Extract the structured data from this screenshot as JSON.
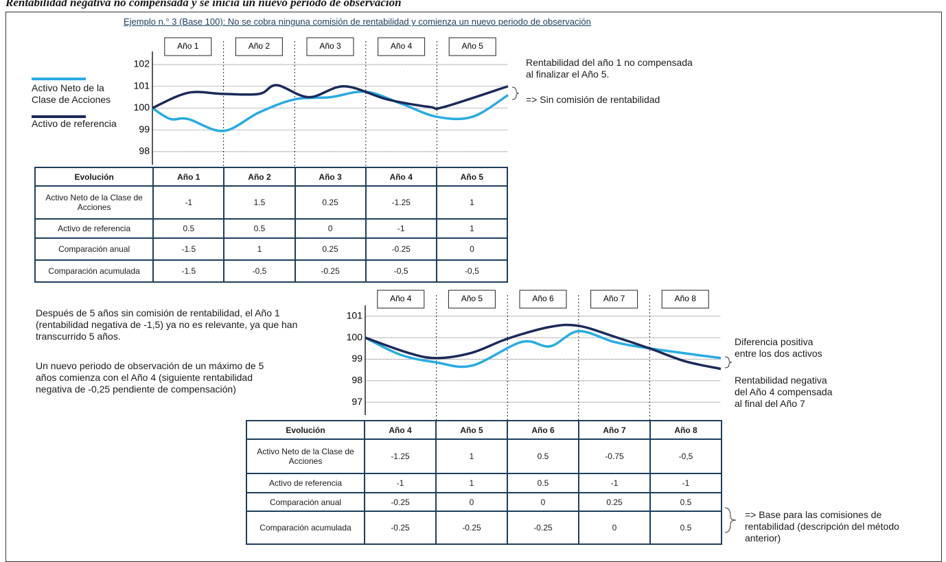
{
  "heading": "Rentabilidad negativa no compensada y se inicia un nuevo periodo de observación",
  "example_title": "Ejemplo n.° 3 (Base 100): No se cobra ninguna comisión de rentabilidad y comienza un nuevo periodo de observación",
  "chart_data": [
    {
      "type": "line",
      "period_labels": [
        "Año 1",
        "Año 2",
        "Año 3",
        "Año 4",
        "Año 5"
      ],
      "xlim": [
        0,
        5
      ],
      "ylim": [
        97.4,
        102.6
      ],
      "yticks": [
        98,
        99,
        100,
        101,
        102
      ],
      "grid": true,
      "series": [
        {
          "name": "Activo Neto de la Clase de Acciones",
          "color": "#29abe2",
          "x": [
            0,
            0.25,
            0.5,
            1,
            1.5,
            2,
            2.5,
            3,
            3.5,
            4,
            4.5,
            5
          ],
          "values": [
            100,
            99.5,
            99.5,
            98.95,
            99.8,
            100.4,
            100.5,
            100.75,
            100.2,
            99.6,
            99.6,
            100.6
          ]
        },
        {
          "name": "Activo de referencia",
          "color": "#1b2a5a",
          "x": [
            0,
            0.5,
            1,
            1.5,
            1.75,
            2.2,
            2.7,
            3.3,
            3.9,
            4.1,
            5
          ],
          "values": [
            100,
            100.7,
            100.65,
            100.65,
            101.05,
            100.5,
            101,
            100.4,
            100.05,
            100.05,
            101
          ]
        }
      ],
      "annotations": [
        "Rentabilidad del año 1 no compensada al finalizar el Año 5.",
        "=> Sin comisión de rentabilidad"
      ]
    },
    {
      "type": "line",
      "period_labels": [
        "Año 4",
        "Año 5",
        "Año 6",
        "Año 7",
        "Año 8"
      ],
      "xlim": [
        0,
        5
      ],
      "ylim": [
        96.4,
        101.5
      ],
      "yticks": [
        97,
        98,
        99,
        100,
        101
      ],
      "grid": true,
      "series": [
        {
          "color": "#29abe2",
          "x": [
            0,
            0.5,
            1,
            1.5,
            2.2,
            2.6,
            3,
            3.5,
            4,
            5
          ],
          "values": [
            100,
            99.2,
            98.85,
            98.7,
            99.8,
            99.6,
            100.3,
            99.8,
            99.5,
            99.05
          ]
        },
        {
          "color": "#1b2a5a",
          "x": [
            0,
            0.6,
            1,
            1.5,
            2,
            2.6,
            3,
            3.5,
            4,
            4.5,
            5
          ],
          "values": [
            100,
            99.3,
            99.05,
            99.3,
            99.95,
            100.5,
            100.55,
            100.05,
            99.5,
            98.9,
            98.55
          ]
        }
      ],
      "annotations": [
        "Diferencia positiva entre los dos activos",
        "Rentabilidad negativa del Año 4 compensada al final del Año 7"
      ]
    }
  ],
  "left_text": [
    "Después de 5 años sin comisión de rentabilidad, el Año 1 (rentabilidad negativa de -1,5) ya no es relevante, ya que han transcurrido 5 años.",
    "Un nuevo periodo de observación de un máximo de 5 años comienza con el Año 4 (siguiente rentabilidad negativa de -0,25 pendiente de compensación)"
  ],
  "bottom_note": "=> Base para las comisiones de rentabilidad (descripción del método anterior)",
  "tables": [
    {
      "header": [
        "Evolución",
        "Año 1",
        "Año 2",
        "Año 3",
        "Año 4",
        "Año 5"
      ],
      "rows": [
        [
          "Activo Neto de la Clase de Acciones",
          "-1",
          "1.5",
          "0.25",
          "-1.25",
          "1"
        ],
        [
          "Activo de referencia",
          "0.5",
          "0.5",
          "0",
          "-1",
          "1"
        ],
        [
          "Comparación anual",
          "-1.5",
          "1",
          "0.25",
          "-0.25",
          "0"
        ],
        [
          "Comparación acumulada",
          "-1.5",
          "-0,5",
          "-0.25",
          "-0,5",
          "-0,5"
        ]
      ]
    },
    {
      "header": [
        "Evolución",
        "Año 4",
        "Año 5",
        "Año 6",
        "Año 7",
        "Año 8"
      ],
      "rows": [
        [
          "Activo Neto de la Clase de Acciones",
          "-1.25",
          "1",
          "0.5",
          "-0.75",
          "-0,5"
        ],
        [
          "Activo de referencia",
          "-1",
          "1",
          "0.5",
          "-1",
          "-1"
        ],
        [
          "Comparación anual",
          "-0.25",
          "0",
          "0",
          "0.25",
          "0.5"
        ],
        [
          "Comparación acumulada",
          "-0.25",
          "-0.25",
          "-0.25",
          "0",
          "0.5"
        ]
      ]
    }
  ]
}
